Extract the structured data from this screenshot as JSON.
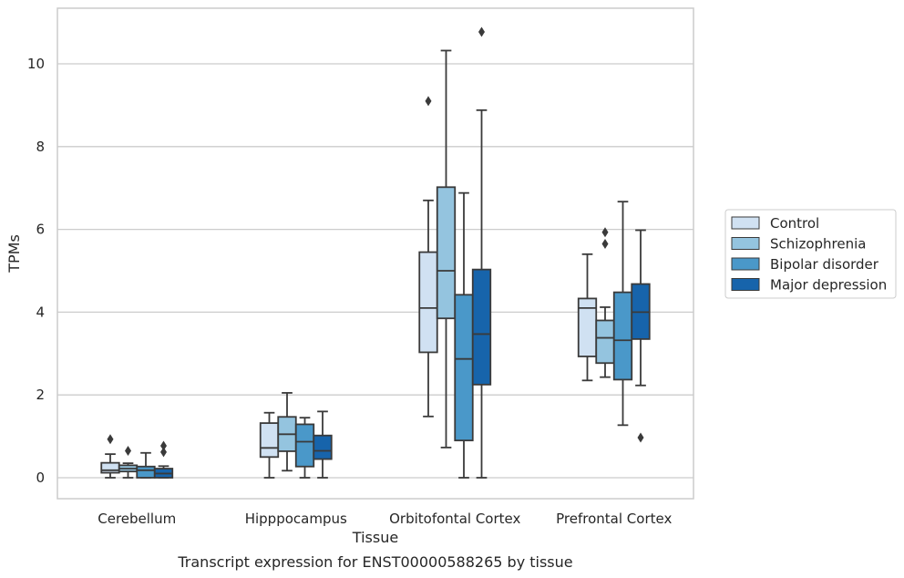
{
  "chart_data": {
    "type": "boxplot",
    "title": "",
    "xlabel": "Tissue",
    "ylabel": "TPMs",
    "caption": "Transcript expression for ENST00000588265 by tissue",
    "ylim": [
      -0.5,
      11.3
    ],
    "yticks": [
      0,
      2,
      4,
      6,
      8,
      10
    ],
    "grid": "horizontal",
    "legend_position": "right",
    "categories": [
      "Cerebellum",
      "Hipppocampus",
      "Orbitofontal Cortex",
      "Prefrontal Cortex"
    ],
    "series": [
      {
        "name": "Control",
        "color": "#d0e1f2",
        "boxes": [
          {
            "min": 0.0,
            "q1": 0.12,
            "median": 0.18,
            "q3": 0.36,
            "max": 0.57,
            "outliers": [
              0.93
            ]
          },
          {
            "min": 0.0,
            "q1": 0.5,
            "median": 0.72,
            "q3": 1.32,
            "max": 1.57,
            "outliers": []
          },
          {
            "min": 1.48,
            "q1": 3.03,
            "median": 4.1,
            "q3": 5.45,
            "max": 6.7,
            "outliers": [
              9.1
            ]
          },
          {
            "min": 2.35,
            "q1": 2.93,
            "median": 4.1,
            "q3": 4.33,
            "max": 5.4,
            "outliers": []
          }
        ]
      },
      {
        "name": "Schizophrenia",
        "color": "#94c4df",
        "boxes": [
          {
            "min": 0.0,
            "q1": 0.15,
            "median": 0.22,
            "q3": 0.3,
            "max": 0.35,
            "outliers": [
              0.65
            ]
          },
          {
            "min": 0.17,
            "q1": 0.64,
            "median": 1.05,
            "q3": 1.47,
            "max": 2.05,
            "outliers": []
          },
          {
            "min": 0.73,
            "q1": 3.85,
            "median": 5.0,
            "q3": 7.02,
            "max": 10.32,
            "outliers": []
          },
          {
            "min": 2.43,
            "q1": 2.77,
            "median": 3.38,
            "q3": 3.8,
            "max": 4.12,
            "outliers": [
              5.65,
              5.93
            ]
          }
        ]
      },
      {
        "name": "Bipolar disorder",
        "color": "#4a98c9",
        "boxes": [
          {
            "min": 0.0,
            "q1": 0.0,
            "median": 0.18,
            "q3": 0.27,
            "max": 0.6,
            "outliers": []
          },
          {
            "min": 0.0,
            "q1": 0.27,
            "median": 0.87,
            "q3": 1.29,
            "max": 1.45,
            "outliers": []
          },
          {
            "min": 0.0,
            "q1": 0.9,
            "median": 2.87,
            "q3": 4.42,
            "max": 6.88,
            "outliers": []
          },
          {
            "min": 1.27,
            "q1": 2.37,
            "median": 3.32,
            "q3": 4.48,
            "max": 6.67,
            "outliers": []
          }
        ]
      },
      {
        "name": "Major depression",
        "color": "#1764ab",
        "boxes": [
          {
            "min": 0.0,
            "q1": 0.0,
            "median": 0.1,
            "q3": 0.22,
            "max": 0.28,
            "outliers": [
              0.62,
              0.77
            ]
          },
          {
            "min": 0.0,
            "q1": 0.45,
            "median": 0.65,
            "q3": 1.02,
            "max": 1.6,
            "outliers": []
          },
          {
            "min": 0.0,
            "q1": 2.25,
            "median": 3.47,
            "q3": 5.03,
            "max": 8.88,
            "outliers": [
              10.77
            ]
          },
          {
            "min": 2.23,
            "q1": 3.35,
            "median": 4.0,
            "q3": 4.68,
            "max": 5.98,
            "outliers": [
              0.97
            ]
          }
        ]
      }
    ]
  }
}
